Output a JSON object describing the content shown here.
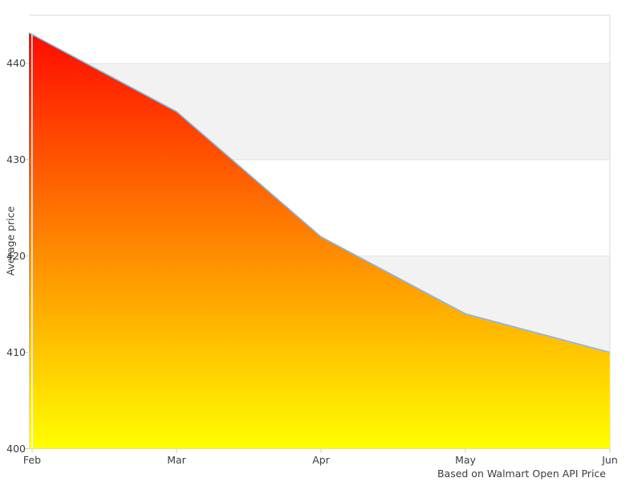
{
  "chart_data": {
    "type": "area",
    "categories": [
      "Feb",
      "Mar",
      "Apr",
      "May",
      "Jun"
    ],
    "values": [
      443,
      435,
      422,
      414,
      410
    ],
    "title": "",
    "xlabel": "",
    "ylabel": "Average price",
    "caption": "Based on Walmart Open API Price",
    "ylim": [
      400,
      445
    ],
    "yticks": [
      400,
      410,
      420,
      430,
      440
    ],
    "grid": "horizontal-bands-alternating",
    "legend": "none",
    "colors": {
      "gradient_top": "#ff0000",
      "gradient_bottom": "#ffff00",
      "line": "#92b5d6",
      "band": "#f2f2f2",
      "gridline": "#e3e3e3",
      "frame": "#d9d9d9",
      "tick": "#c9c9c9",
      "text": "#3d3d3d",
      "separator": "#ffffff"
    }
  }
}
